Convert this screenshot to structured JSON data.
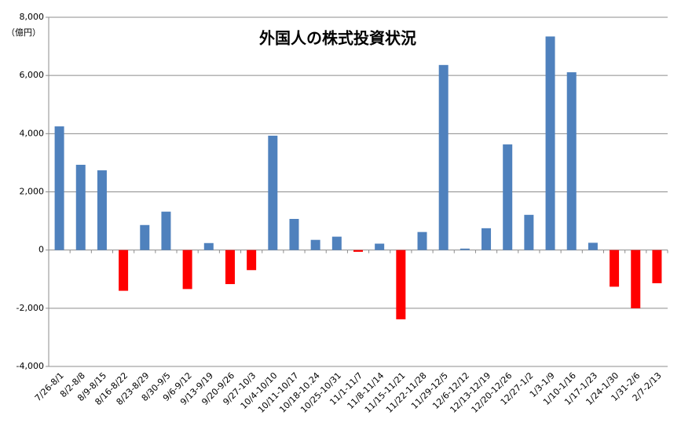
{
  "chart_data": {
    "type": "bar",
    "title": "外国人の株式投資状況",
    "y_label": "（億円）",
    "categories": [
      "7/26-8/1",
      "8/2-8/8",
      "8/9-8/15",
      "8/16-8/22",
      "8/23-8/29",
      "8/30-9/5",
      "9/6-9/12",
      "9/13-9/19",
      "9/20-9/26",
      "9/27-10/3",
      "10/4-10/10",
      "10/11-10/17",
      "10/18-10.24",
      "10/25-10/31",
      "11/1-11/7",
      "11/8-11/14",
      "11/15-11/21",
      "11/22-11/28",
      "11/29-12/5",
      "12/6-12/12",
      "12/13-12/19",
      "12/20-12/26",
      "12/27-1/2",
      "1/3-1/9",
      "1/10-1/16",
      "1/17-1/23",
      "1/24-1/30",
      "1/31-2/6",
      "2/7-2/13"
    ],
    "values": [
      4250,
      2930,
      2740,
      -1400,
      860,
      1320,
      -1340,
      240,
      -1170,
      -690,
      3930,
      1070,
      350,
      460,
      -60,
      220,
      -2380,
      620,
      6360,
      50,
      750,
      3630,
      1210,
      7340,
      6110,
      250,
      -1260,
      -2000,
      -1140
    ],
    "color": "#4f81bd",
    "negative_color": "#ff0000",
    "ylim": [
      -4000,
      8000
    ],
    "yticks": [
      {
        "value": -4000,
        "label": "-4,000"
      },
      {
        "value": -2000,
        "label": "-2,000"
      },
      0,
      {
        "value": 2000,
        "label": "2,000"
      },
      {
        "value": 4000,
        "label": "4,000"
      },
      {
        "value": 6000,
        "label": "6,000"
      },
      {
        "value": 8000,
        "label": "8,000"
      }
    ],
    "grid": true
  }
}
